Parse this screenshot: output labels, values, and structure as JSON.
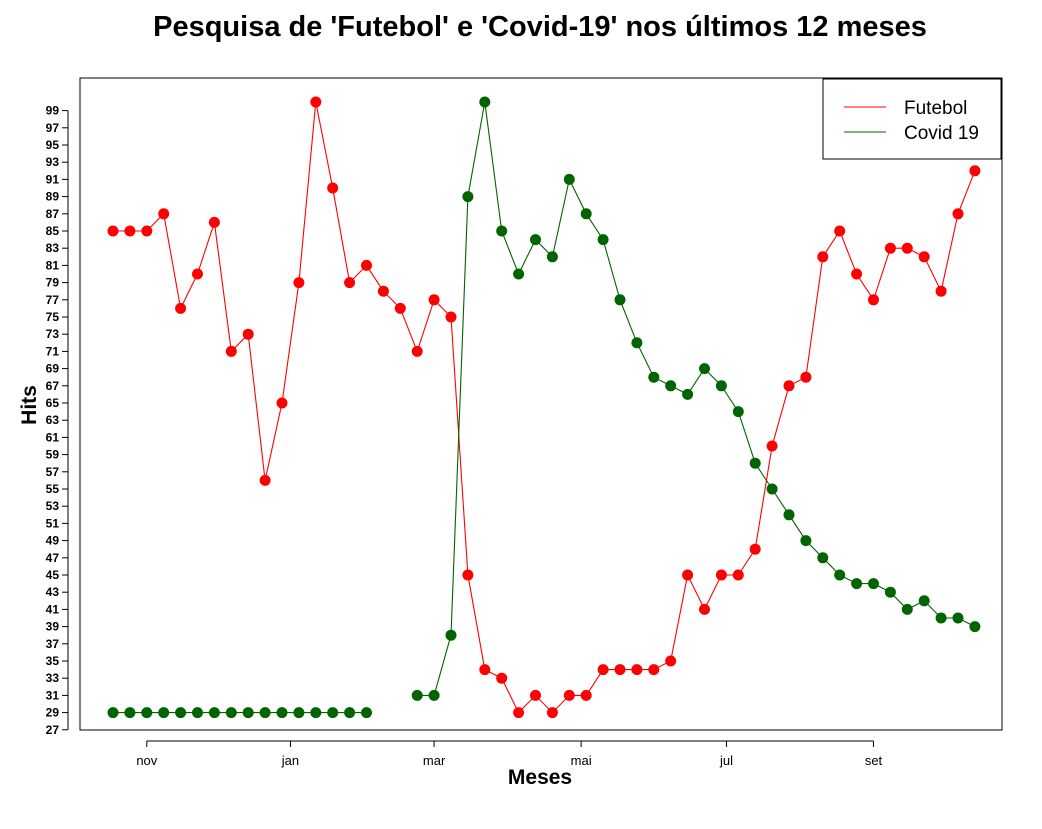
{
  "colors": {
    "futebol": "#ff0000",
    "covid": "#006400"
  },
  "chart_data": {
    "type": "line",
    "title": "Pesquisa de 'Futebol' e 'Covid-19' nos últimos 12 meses",
    "xlabel": "Meses",
    "ylabel": "Hits",
    "ylim": [
      27,
      100
    ],
    "yticks": [
      27,
      29,
      31,
      33,
      35,
      37,
      39,
      41,
      43,
      45,
      47,
      49,
      51,
      53,
      55,
      57,
      59,
      61,
      63,
      65,
      67,
      69,
      71,
      73,
      75,
      77,
      79,
      81,
      83,
      85,
      87,
      89,
      91,
      93,
      95,
      97,
      99
    ],
    "xticks": [
      {
        "label": "nov",
        "index": 2
      },
      {
        "label": "jan",
        "index": 10.5
      },
      {
        "label": "mar",
        "index": 19
      },
      {
        "label": "mai",
        "index": 27.7
      },
      {
        "label": "jul",
        "index": 36.3
      },
      {
        "label": "set",
        "index": 45
      }
    ],
    "legend": {
      "position": "top-right",
      "entries": [
        "Futebol",
        "Covid 19"
      ]
    },
    "grid": false,
    "series": [
      {
        "name": "Futebol",
        "values": [
          85,
          85,
          85,
          87,
          76,
          80,
          86,
          71,
          73,
          56,
          65,
          79,
          100,
          90,
          79,
          81,
          78,
          76,
          71,
          77,
          75,
          45,
          34,
          33,
          29,
          31,
          29,
          31,
          31,
          34,
          34,
          34,
          34,
          35,
          45,
          41,
          45,
          45,
          48,
          60,
          67,
          68,
          82,
          85,
          80,
          77,
          83,
          83,
          82,
          78,
          87,
          92
        ]
      },
      {
        "name": "Covid 19",
        "values": [
          29,
          29,
          29,
          29,
          29,
          29,
          29,
          29,
          29,
          29,
          29,
          29,
          29,
          29,
          29,
          29,
          null,
          null,
          31,
          31,
          38,
          89,
          100,
          85,
          80,
          84,
          82,
          91,
          87,
          84,
          77,
          72,
          68,
          67,
          66,
          69,
          67,
          64,
          58,
          55,
          52,
          49,
          47,
          45,
          44,
          44,
          43,
          41,
          42,
          40,
          40,
          39
        ]
      }
    ]
  }
}
